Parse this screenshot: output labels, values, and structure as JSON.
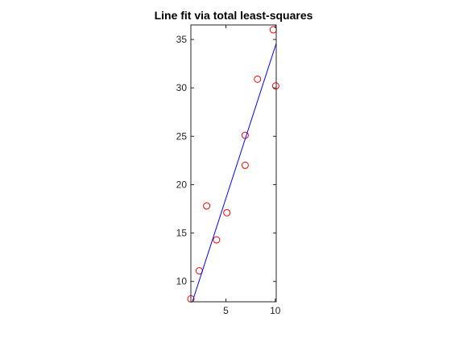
{
  "chart_data": {
    "type": "scatter",
    "title": "Line fit via total least-squares",
    "xlabel": "",
    "ylabel": "",
    "xlim": [
      1.45,
      10.1
    ],
    "ylim": [
      7.9,
      36.5
    ],
    "xticks": [
      5,
      10
    ],
    "yticks": [
      10,
      15,
      20,
      25,
      30,
      35
    ],
    "grid": false,
    "series": [
      {
        "kind": "markers",
        "marker": "circle",
        "color": "#ff0000",
        "x": [
          1.45,
          2.3,
          3.05,
          4.05,
          5.1,
          6.95,
          6.95,
          8.2,
          9.8,
          10.05
        ],
        "y": [
          8.2,
          11.1,
          17.8,
          14.3,
          17.1,
          25.1,
          22.0,
          30.9,
          36.0,
          30.2
        ]
      },
      {
        "kind": "line",
        "color": "#0000ff",
        "x": [
          1.6,
          10.1
        ],
        "y": [
          7.9,
          34.6
        ]
      }
    ]
  }
}
